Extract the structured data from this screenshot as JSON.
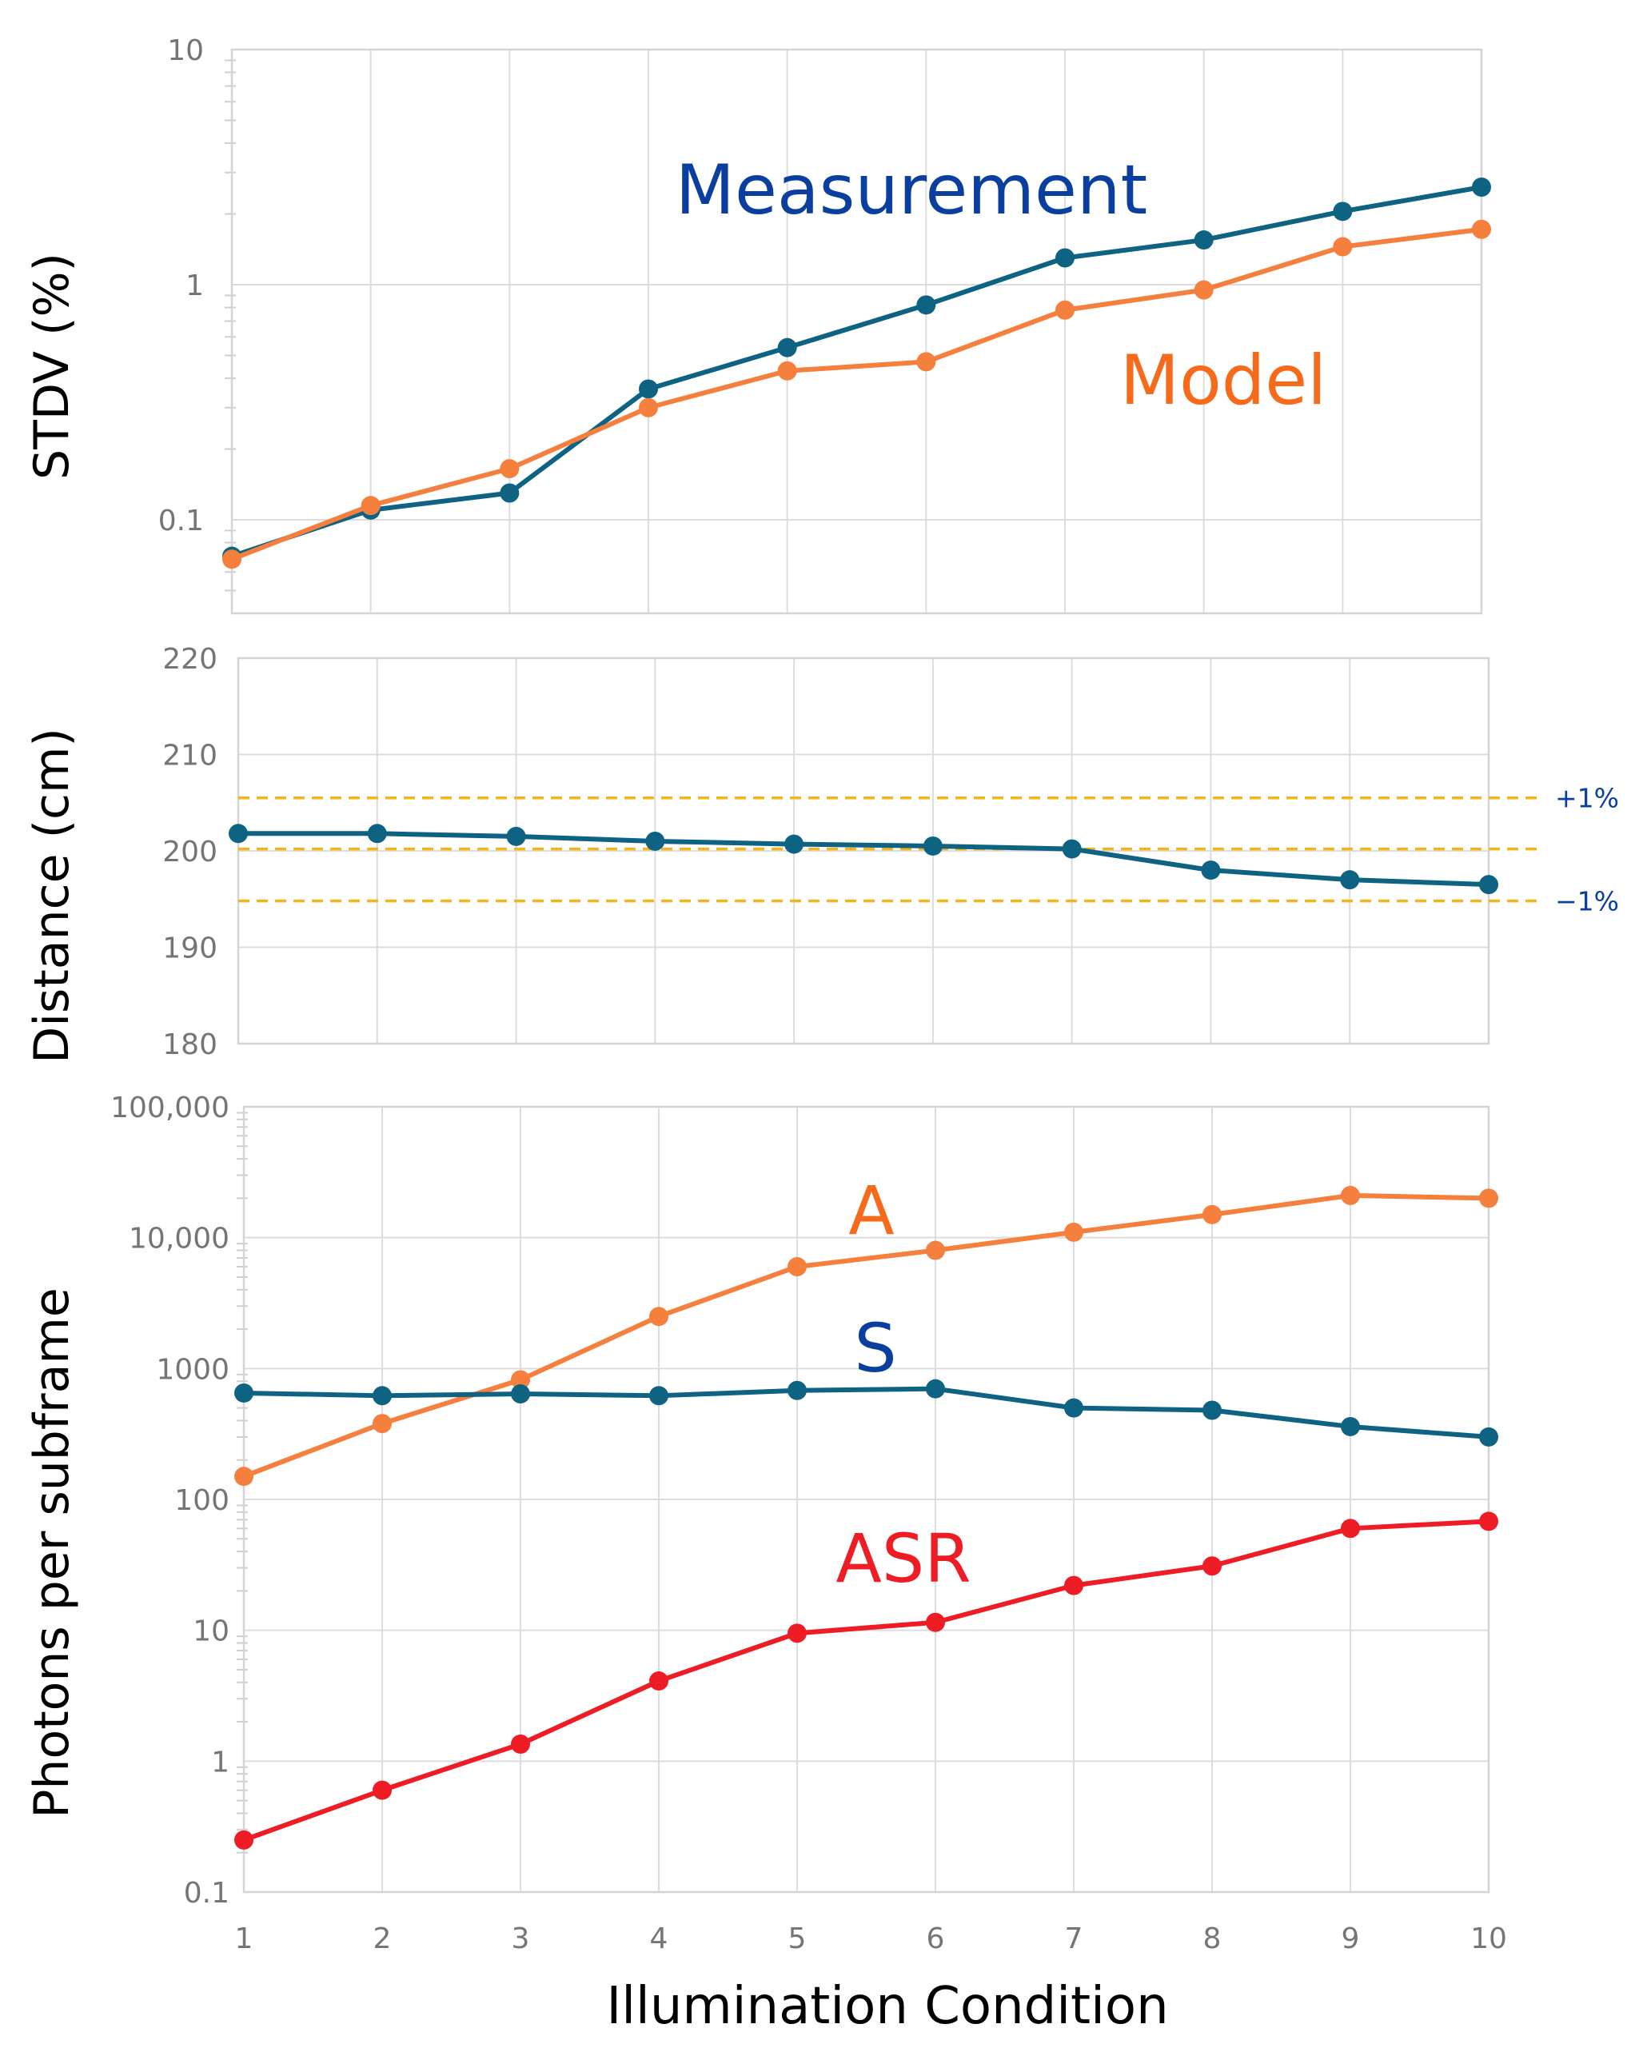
{
  "colors": {
    "measurement": "#0e6382",
    "model": "#f57f3d",
    "a": "#f57f3d",
    "s": "#0e6382",
    "asr": "#ee1c24",
    "threshold": "#f2b51b",
    "label_blue": "#0a3fa0",
    "label_orange": "#f56a1b",
    "label_red": "#ee1c24"
  },
  "chart_data": [
    {
      "type": "line",
      "panel": "stdv",
      "ylabel": "STDV (%)",
      "yscale": "log",
      "ylim": [
        0.04,
        10
      ],
      "ytick_values": [
        0.1,
        1,
        10
      ],
      "ytick_labels": [
        "0.1",
        "1",
        "10"
      ],
      "x": [
        1,
        2,
        3,
        4,
        5,
        6,
        7,
        8,
        9,
        10
      ],
      "series": [
        {
          "name": "Measurement",
          "color_key": "measurement",
          "values": [
            0.07,
            0.11,
            0.13,
            0.36,
            0.54,
            0.82,
            1.3,
            1.55,
            2.05,
            2.6
          ]
        },
        {
          "name": "Model",
          "color_key": "model",
          "values": [
            0.068,
            0.115,
            0.165,
            0.3,
            0.43,
            0.47,
            0.78,
            0.95,
            1.45,
            1.72
          ]
        }
      ],
      "annotations": [
        {
          "text": "Measurement",
          "color_key": "label_blue"
        },
        {
          "text": "Model",
          "color_key": "label_orange"
        }
      ]
    },
    {
      "type": "line",
      "panel": "distance",
      "ylabel": "Distance (cm)",
      "yscale": "linear",
      "ylim": [
        180,
        220
      ],
      "ytick_values": [
        180,
        190,
        200,
        210,
        220
      ],
      "ytick_labels": [
        "180",
        "190",
        "200",
        "210",
        "220"
      ],
      "x": [
        1,
        2,
        3,
        4,
        5,
        6,
        7,
        8,
        9,
        10
      ],
      "series": [
        {
          "name": "Distance",
          "color_key": "measurement",
          "values": [
            201.8,
            201.8,
            201.5,
            201.0,
            200.7,
            200.5,
            200.2,
            198.0,
            197.0,
            196.5
          ]
        }
      ],
      "reference_lines": [
        {
          "value": 205.5,
          "label": "+1%"
        },
        {
          "value": 200.2,
          "label": ""
        },
        {
          "value": 194.8,
          "label": "−1%"
        }
      ]
    },
    {
      "type": "line",
      "panel": "photons",
      "ylabel": "Photons per subframe",
      "xlabel": "Illumination Condition",
      "yscale": "log",
      "ylim": [
        0.1,
        100000
      ],
      "ytick_values": [
        0.1,
        1,
        10,
        100,
        1000,
        10000,
        100000
      ],
      "ytick_labels": [
        "0.1",
        "1",
        "10",
        "100",
        "1000",
        "10,000",
        "100,000"
      ],
      "x": [
        1,
        2,
        3,
        4,
        5,
        6,
        7,
        8,
        9,
        10
      ],
      "xtick_labels": [
        "1",
        "2",
        "3",
        "4",
        "5",
        "6",
        "7",
        "8",
        "9",
        "10"
      ],
      "series": [
        {
          "name": "A",
          "color_key": "a",
          "values": [
            150,
            380,
            820,
            2500,
            6000,
            8000,
            11000,
            15000,
            21000,
            20000
          ]
        },
        {
          "name": "S",
          "color_key": "s",
          "values": [
            650,
            620,
            640,
            620,
            680,
            700,
            500,
            480,
            360,
            300
          ]
        },
        {
          "name": "ASR",
          "color_key": "asr",
          "values": [
            0.25,
            0.6,
            1.35,
            4.1,
            9.5,
            11.5,
            22,
            31,
            60,
            68
          ]
        }
      ],
      "annotations": [
        {
          "text": "A",
          "color_key": "label_orange"
        },
        {
          "text": "S",
          "color_key": "label_blue"
        },
        {
          "text": "ASR",
          "color_key": "label_red"
        }
      ]
    }
  ]
}
